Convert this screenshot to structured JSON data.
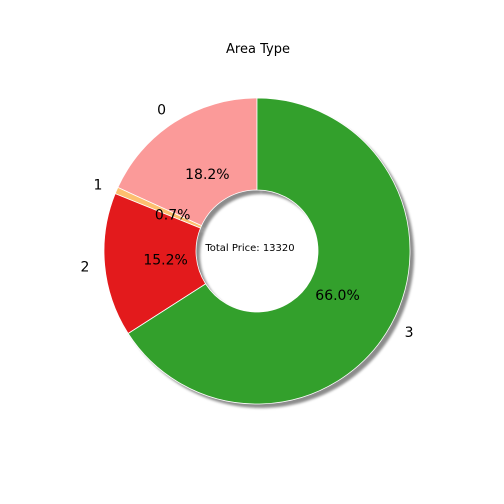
{
  "chart_data": {
    "type": "pie",
    "title": "Area Type",
    "center_text": "Total Price: 13320",
    "categories": [
      "0",
      "1",
      "2",
      "3"
    ],
    "values": [
      18.2,
      0.7,
      15.2,
      66.0
    ],
    "labels": [
      "18.2%",
      "0.7%",
      "15.2%",
      "66.0%"
    ],
    "colors": [
      "#fb9a99",
      "#fdbf6f",
      "#e31a1c",
      "#33a02c"
    ],
    "donut": true,
    "shadow": true
  }
}
